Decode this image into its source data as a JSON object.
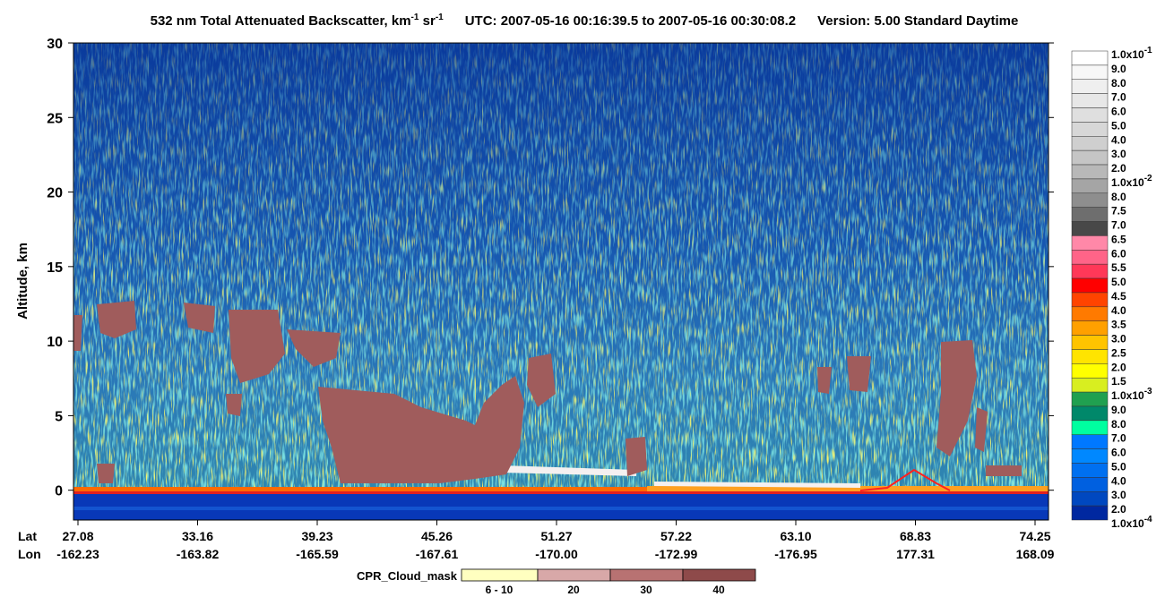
{
  "chart_data": {
    "type": "heatmap",
    "title": [
      {
        "text": "532 nm Total Attenuated Backscatter, km"
      },
      {
        "sup": "-1"
      },
      {
        "text": " sr"
      },
      {
        "sup": "-1"
      }
    ],
    "utc": "UTC:  2007-05-16 00:16:39.5  to  2007-05-16 00:30:08.2",
    "version": "Version: 5.00  Standard  Daytime",
    "ylabel": "Altitude, km",
    "ylim": [
      -2,
      30
    ],
    "yticks": [
      0,
      5,
      10,
      15,
      20,
      25,
      30
    ],
    "row_labels": [
      "Lat",
      "Lon"
    ],
    "lat": [
      "27.08",
      "33.16",
      "39.23",
      "45.26",
      "51.27",
      "57.22",
      "63.10",
      "68.83",
      "74.25"
    ],
    "lon": [
      "-162.23",
      "-163.82",
      "-165.59",
      "-167.61",
      "-170.00",
      "-172.99",
      "-176.95",
      "177.31",
      "168.09"
    ],
    "colorbar": {
      "labels": [
        {
          "text": "1.0x10",
          "sup": "-1"
        },
        "9.0",
        "8.0",
        "7.0",
        "6.0",
        "5.0",
        "4.0",
        "3.0",
        "2.0",
        {
          "text": "1.0x10",
          "sup": "-2"
        },
        "8.0",
        "7.5",
        "7.0",
        "6.5",
        "6.0",
        "5.5",
        "5.0",
        "4.5",
        "4.0",
        "3.5",
        "3.0",
        "2.5",
        "2.0",
        "1.5",
        {
          "text": "1.0x10",
          "sup": "-3"
        },
        "9.0",
        "8.0",
        "7.0",
        "6.0",
        "5.0",
        "4.0",
        "3.0",
        "2.0",
        {
          "text": "1.0x10",
          "sup": "-4"
        }
      ],
      "colors": [
        "#ffffff",
        "#f7f7f7",
        "#efefef",
        "#e7e7e7",
        "#dfdfdf",
        "#d7d7d7",
        "#cfcfcf",
        "#c5c5c5",
        "#b8b8b8",
        "#a5a5a5",
        "#8e8e8e",
        "#6e6e6e",
        "#484848",
        "#ff88a8",
        "#ff6488",
        "#ff3858",
        "#ff0000",
        "#ff4400",
        "#ff7a00",
        "#ffa000",
        "#ffc400",
        "#ffe400",
        "#ffff00",
        "#d8ee20",
        "#20a050",
        "#00886a",
        "#00ffa0",
        "#0078ff",
        "#0088ff",
        "#0070f0",
        "#0060e0",
        "#0048c0",
        "#0028a0"
      ]
    },
    "cpr_legend": {
      "title": "CPR_Cloud_mask",
      "labels": [
        "6 - 10",
        "20",
        "30",
        "40"
      ],
      "colors": [
        "#ffffc0",
        "#d8a8a8",
        "#b87272",
        "#8e4a4a"
      ]
    }
  }
}
